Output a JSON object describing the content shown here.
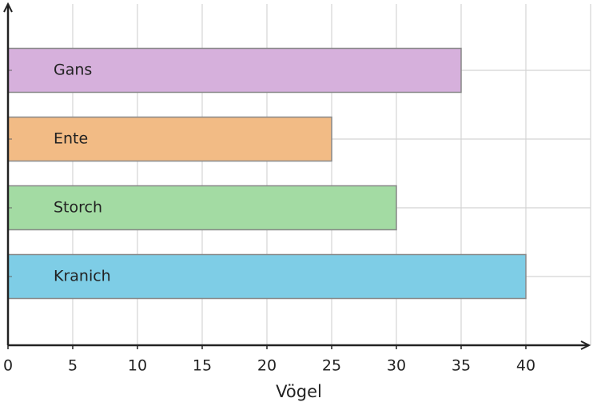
{
  "chart_data": {
    "type": "barh",
    "x_label": "Vögel",
    "categories": [
      "Gans",
      "Ente",
      "Storch",
      "Kranich"
    ],
    "series": [
      {
        "colors": [
          "#d6b0dc",
          "#f2bb85",
          "#a3dba3",
          "#7ecde6"
        ],
        "values": [
          35,
          25,
          30,
          40
        ]
      }
    ],
    "xlim": [
      0,
      45
    ],
    "xticks": [
      0,
      5,
      10,
      15,
      20,
      25,
      30,
      35,
      40
    ],
    "grid": true
  }
}
